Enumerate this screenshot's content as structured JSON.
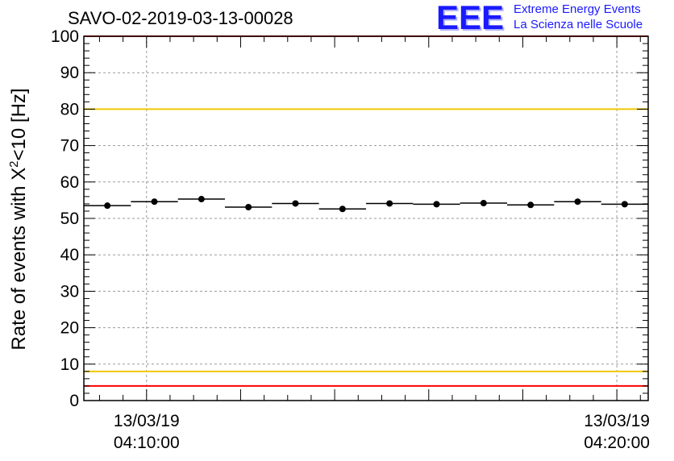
{
  "title": "SAVO-02-2019-03-13-00028",
  "logo": {
    "letters": "EEE",
    "line1": "Extreme Energy Events",
    "line2": "La Scienza nelle Scuole"
  },
  "colors": {
    "red_limit": "#ff0000",
    "yellow_limit": "#f0c800",
    "grid": "#9a9a9a",
    "points": "#000000",
    "logo": "#1a1aff"
  },
  "chart_data": {
    "type": "scatter",
    "title": "SAVO-02-2019-03-13-00028",
    "ylabel_prefix": "Rate of events with X",
    "ylabel_sup": "2",
    "ylabel_suffix": "<10 [Hz]",
    "ylim": [
      0,
      100
    ],
    "yticks": [
      0,
      10,
      20,
      30,
      40,
      50,
      60,
      70,
      80,
      90,
      100
    ],
    "xlim": [
      "2019-03-13T04:08:40",
      "2019-03-13T04:20:40"
    ],
    "xticks": [
      {
        "x": "2019-03-13T04:10:00",
        "line1": "13/03/19",
        "line2": "04:10:00"
      },
      {
        "x": "2019-03-13T04:20:00",
        "line1": "13/03/19",
        "line2": "04:20:00"
      }
    ],
    "grid": true,
    "horizontal_lines": [
      {
        "y": 100,
        "color": "#ff0000"
      },
      {
        "y": 80,
        "color": "#f0c800"
      },
      {
        "y": 8,
        "color": "#f0c800"
      },
      {
        "y": 4,
        "color": "#ff0000"
      }
    ],
    "series": [
      {
        "points": [
          {
            "x": "2019-03-13T04:09:10",
            "y": 53.5
          },
          {
            "x": "2019-03-13T04:10:10",
            "y": 54.6
          },
          {
            "x": "2019-03-13T04:11:10",
            "y": 55.3
          },
          {
            "x": "2019-03-13T04:12:10",
            "y": 53.1
          },
          {
            "x": "2019-03-13T04:13:10",
            "y": 54.1
          },
          {
            "x": "2019-03-13T04:14:10",
            "y": 52.6
          },
          {
            "x": "2019-03-13T04:15:10",
            "y": 54.1
          },
          {
            "x": "2019-03-13T04:16:10",
            "y": 53.9
          },
          {
            "x": "2019-03-13T04:17:10",
            "y": 54.2
          },
          {
            "x": "2019-03-13T04:18:10",
            "y": 53.7
          },
          {
            "x": "2019-03-13T04:19:10",
            "y": 54.6
          },
          {
            "x": "2019-03-13T04:20:10",
            "y": 53.9
          }
        ],
        "bin_seconds": 60
      }
    ]
  }
}
